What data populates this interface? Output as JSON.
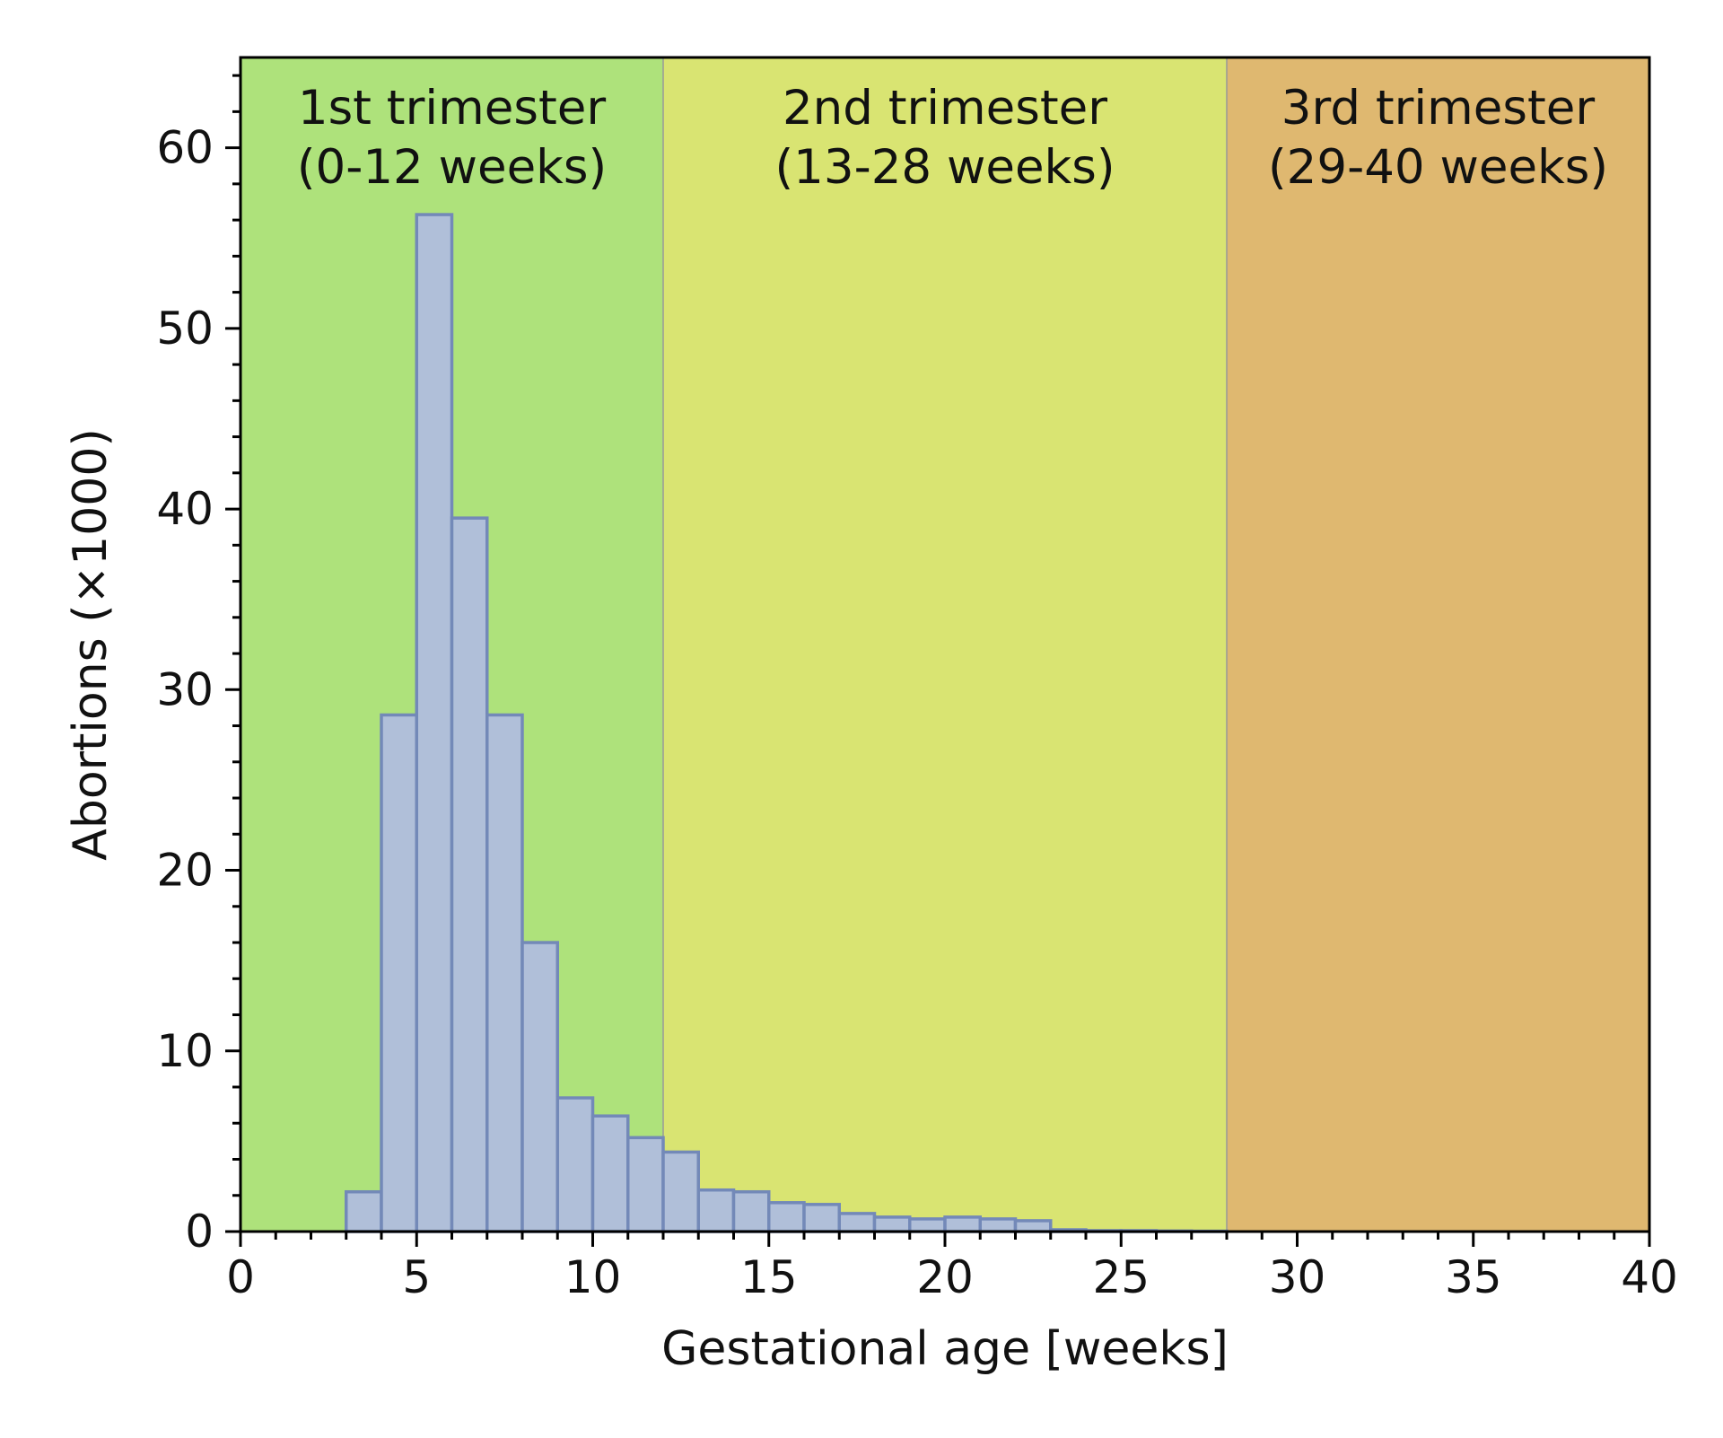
{
  "chart_data": {
    "type": "bar",
    "title": "",
    "xlabel": "Gestational age [weeks]",
    "ylabel": "Abortions (×1000)",
    "xlim": [
      0,
      40
    ],
    "ylim": [
      0,
      65
    ],
    "x_ticks": [
      0,
      5,
      10,
      15,
      20,
      25,
      30,
      35,
      40
    ],
    "y_ticks": [
      0,
      10,
      20,
      30,
      40,
      50,
      60
    ],
    "grid": false,
    "bar_color": "#b0bfd9",
    "bar_edge_color": "#7389b8",
    "bins": [
      {
        "start": 3,
        "end": 4,
        "value": 2.2
      },
      {
        "start": 4,
        "end": 5,
        "value": 28.6
      },
      {
        "start": 5,
        "end": 6,
        "value": 56.3
      },
      {
        "start": 6,
        "end": 7,
        "value": 39.5
      },
      {
        "start": 7,
        "end": 8,
        "value": 28.6
      },
      {
        "start": 8,
        "end": 9,
        "value": 16.0
      },
      {
        "start": 9,
        "end": 10,
        "value": 7.4
      },
      {
        "start": 10,
        "end": 11,
        "value": 6.4
      },
      {
        "start": 11,
        "end": 12,
        "value": 5.2
      },
      {
        "start": 12,
        "end": 13,
        "value": 4.4
      },
      {
        "start": 13,
        "end": 14,
        "value": 2.3
      },
      {
        "start": 14,
        "end": 15,
        "value": 2.2
      },
      {
        "start": 15,
        "end": 16,
        "value": 1.6
      },
      {
        "start": 16,
        "end": 17,
        "value": 1.5
      },
      {
        "start": 17,
        "end": 18,
        "value": 1.0
      },
      {
        "start": 18,
        "end": 19,
        "value": 0.8
      },
      {
        "start": 19,
        "end": 20,
        "value": 0.7
      },
      {
        "start": 20,
        "end": 21,
        "value": 0.8
      },
      {
        "start": 21,
        "end": 22,
        "value": 0.7
      },
      {
        "start": 22,
        "end": 23,
        "value": 0.6
      },
      {
        "start": 23,
        "end": 24,
        "value": 0.1
      },
      {
        "start": 24,
        "end": 25,
        "value": 0.05
      },
      {
        "start": 25,
        "end": 26,
        "value": 0.05
      },
      {
        "start": 26,
        "end": 27,
        "value": 0.03
      },
      {
        "start": 27,
        "end": 28,
        "value": 0.02
      }
    ],
    "regions": [
      {
        "label_line1": "1st trimester",
        "label_line2": "(0-12 weeks)",
        "start": 0,
        "end": 12,
        "color": "#aee27b"
      },
      {
        "label_line1": "2nd trimester",
        "label_line2": "(13-28 weeks)",
        "start": 12,
        "end": 28,
        "color": "#d9e472"
      },
      {
        "label_line1": "3rd trimester",
        "label_line2": "(29-40 weeks)",
        "start": 28,
        "end": 40,
        "color": "#dfb870"
      }
    ]
  }
}
